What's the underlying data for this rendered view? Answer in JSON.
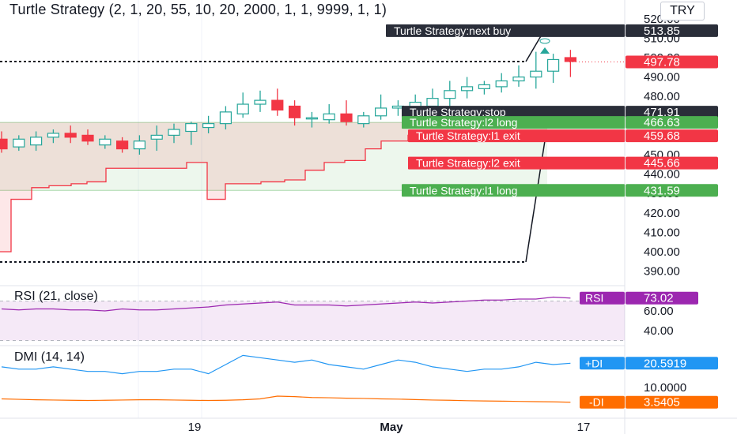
{
  "title": "Turtle Strategy (2, 1, 20, 55, 10, 20, 2000, 1, 1, 9999, 1, 1)",
  "currency": "TRY",
  "price_axis": [
    "520.00",
    "510.00",
    "500.00",
    "490.00",
    "480.00",
    "470.00",
    "460.00",
    "450.00",
    "440.00",
    "430.00",
    "420.00",
    "410.00",
    "400.00",
    "390.00"
  ],
  "strategy_labels": [
    {
      "text": "Turtle Strategy:next buy",
      "value": "513.85",
      "color": "#2a2e39"
    },
    {
      "text": "",
      "value": "497.78",
      "color": "#f23645"
    },
    {
      "text": "Turtle Strategy:stop",
      "value": "471.91",
      "color": "#2a2e39"
    },
    {
      "text": "Turtle Strategy:l2 long",
      "value": "466.63",
      "color": "#4caf50"
    },
    {
      "text": "Turtle Strategy:l1 exit",
      "value": "459.68",
      "color": "#f23645"
    },
    {
      "text": "Turtle Strategy:l2 exit",
      "value": "445.66",
      "color": "#f23645"
    },
    {
      "text": "Turtle Strategy:l1 long",
      "value": "431.59",
      "color": "#4caf50"
    }
  ],
  "rsi": {
    "label": "RSI (21, close)",
    "axis": [
      "60.00",
      "40.00"
    ],
    "badge_name": "RSI",
    "badge_value": "73.02",
    "color": "#9c27b0"
  },
  "dmi": {
    "label": "DMI (14, 14)",
    "axis": [
      "10.0000"
    ],
    "plus_name": "+DI",
    "plus_value": "20.5919",
    "plus_color": "#2196f3",
    "minus_name": "-DI",
    "minus_value": "3.5405",
    "minus_color": "#ff6d00"
  },
  "time_axis": [
    "19",
    "May",
    "17"
  ],
  "chart_data": {
    "type": "candlestick",
    "candles": [
      {
        "o": 458,
        "h": 462,
        "l": 451,
        "c": 453
      },
      {
        "o": 454,
        "h": 460,
        "l": 452,
        "c": 458
      },
      {
        "o": 455,
        "h": 462,
        "l": 452,
        "c": 459
      },
      {
        "o": 459,
        "h": 463,
        "l": 456,
        "c": 461
      },
      {
        "o": 461,
        "h": 465,
        "l": 456,
        "c": 459
      },
      {
        "o": 460,
        "h": 463,
        "l": 455,
        "c": 457
      },
      {
        "o": 455,
        "h": 460,
        "l": 453,
        "c": 458
      },
      {
        "o": 457,
        "h": 459,
        "l": 451,
        "c": 453
      },
      {
        "o": 453,
        "h": 460,
        "l": 450,
        "c": 457
      },
      {
        "o": 458,
        "h": 465,
        "l": 452,
        "c": 460
      },
      {
        "o": 460,
        "h": 466,
        "l": 456,
        "c": 463
      },
      {
        "o": 462,
        "h": 467,
        "l": 455,
        "c": 466
      },
      {
        "o": 464,
        "h": 470,
        "l": 461,
        "c": 466
      },
      {
        "o": 466,
        "h": 475,
        "l": 463,
        "c": 472
      },
      {
        "o": 471,
        "h": 482,
        "l": 469,
        "c": 476
      },
      {
        "o": 476,
        "h": 483,
        "l": 472,
        "c": 478
      },
      {
        "o": 478,
        "h": 484,
        "l": 470,
        "c": 473
      },
      {
        "o": 475,
        "h": 478,
        "l": 465,
        "c": 469
      },
      {
        "o": 469,
        "h": 472,
        "l": 464,
        "c": 469
      },
      {
        "o": 468,
        "h": 476,
        "l": 466,
        "c": 471
      },
      {
        "o": 471,
        "h": 478,
        "l": 465,
        "c": 467
      },
      {
        "o": 466,
        "h": 472,
        "l": 464,
        "c": 470
      },
      {
        "o": 470,
        "h": 481,
        "l": 468,
        "c": 474
      },
      {
        "o": 474,
        "h": 478,
        "l": 470,
        "c": 475
      },
      {
        "o": 474,
        "h": 481,
        "l": 470,
        "c": 477
      },
      {
        "o": 475,
        "h": 484,
        "l": 472,
        "c": 479
      },
      {
        "o": 479,
        "h": 488,
        "l": 475,
        "c": 483
      },
      {
        "o": 483,
        "h": 490,
        "l": 479,
        "c": 485
      },
      {
        "o": 484,
        "h": 488,
        "l": 481,
        "c": 486
      },
      {
        "o": 485,
        "h": 492,
        "l": 482,
        "c": 488
      },
      {
        "o": 488,
        "h": 496,
        "l": 485,
        "c": 490
      },
      {
        "o": 490,
        "h": 503,
        "l": 484,
        "c": 493
      },
      {
        "o": 493,
        "h": 502,
        "l": 487,
        "c": 499
      },
      {
        "o": 500,
        "h": 504,
        "l": 490,
        "c": 498
      }
    ],
    "levels": {
      "next_buy": 513.85,
      "last": 497.78,
      "stop": 471.91,
      "l2_long": 466.63,
      "l1_exit": 459.68,
      "l2_exit": 445.66,
      "l1_long": 431.59
    },
    "rsi_values": [
      62,
      61,
      62,
      62,
      61,
      61,
      60,
      62,
      61,
      61,
      62,
      63,
      64,
      66,
      67,
      68,
      69,
      66,
      66,
      66,
      65,
      66,
      67,
      68,
      69,
      68,
      69,
      70,
      71,
      71,
      72,
      72,
      74,
      73.02
    ],
    "plus_di_values": [
      19,
      18,
      18,
      19,
      18,
      17,
      17,
      16,
      17,
      17,
      18,
      18,
      16,
      20,
      24,
      23,
      22,
      21,
      22,
      20,
      19,
      18,
      20,
      22,
      21,
      19,
      18,
      17,
      18,
      18,
      19,
      21,
      20,
      20.59
    ],
    "minus_di_values": [
      5,
      4.8,
      4.6,
      4.5,
      4.4,
      4.3,
      4.4,
      4.5,
      4.6,
      4.6,
      4.5,
      4.4,
      4.3,
      4.4,
      4.6,
      5,
      6.2,
      6,
      5.6,
      5.5,
      5.3,
      5.2,
      5,
      4.9,
      4.7,
      4.5,
      4.4,
      4.2,
      4.1,
      4,
      3.9,
      3.8,
      3.7,
      3.54
    ]
  }
}
